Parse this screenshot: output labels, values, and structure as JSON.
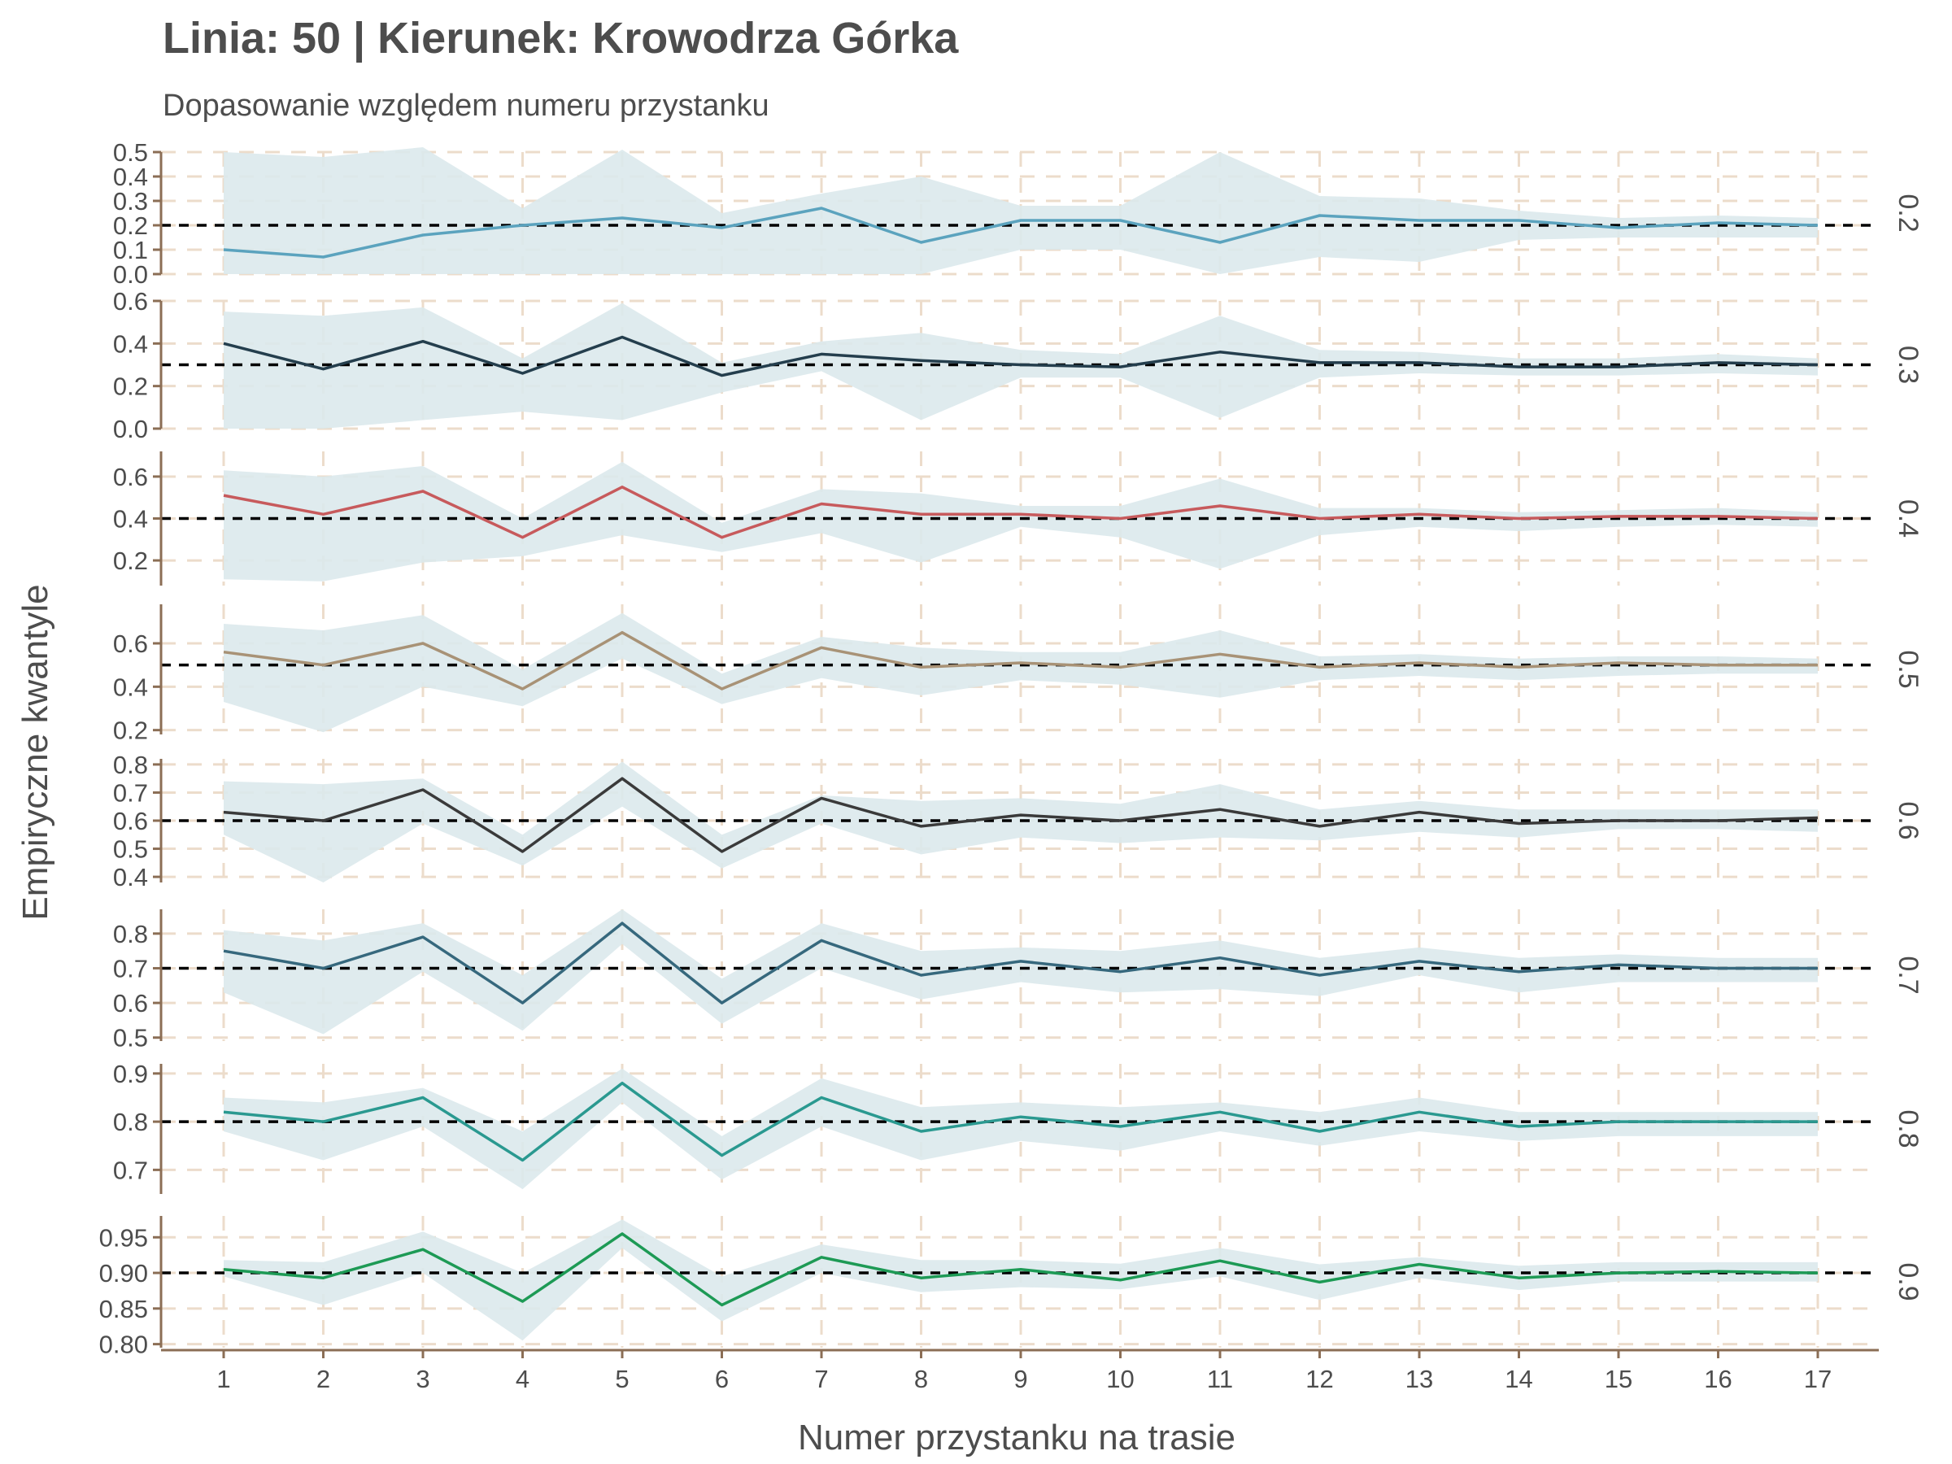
{
  "chart_data": {
    "type": "line",
    "title": "Linia: 50 | Kierunek: Krowodrza Górka",
    "subtitle": "Dopasowanie względem numeru przystanku",
    "xlabel": "Numer przystanku na trasie",
    "ylabel": "Empiryczne kwantyle",
    "x": [
      1,
      2,
      3,
      4,
      5,
      6,
      7,
      8,
      9,
      10,
      11,
      12,
      13,
      14,
      15,
      16,
      17
    ],
    "grid": true,
    "colors": {
      "band": "#dbe9ec",
      "grid": "#ecdccb",
      "axis": "#8b6e55",
      "reference_line": "#000000"
    },
    "panels": [
      {
        "strip_label": "0.2",
        "reference": 0.2,
        "ylim": [
          0.0,
          0.5
        ],
        "yticks": [
          0.0,
          0.1,
          0.2,
          0.3,
          0.4,
          0.5
        ],
        "ytick_labels": [
          "0.0",
          "0.1",
          "0.2",
          "0.3",
          "0.4",
          "0.5"
        ],
        "color": "#5ba3be",
        "values": [
          0.1,
          0.07,
          0.16,
          0.2,
          0.23,
          0.19,
          0.27,
          0.13,
          0.22,
          0.22,
          0.13,
          0.24,
          0.22,
          0.22,
          0.19,
          0.21,
          0.2
        ],
        "lower": [
          0.0,
          0.0,
          0.0,
          0.0,
          0.0,
          0.0,
          0.0,
          0.0,
          0.1,
          0.1,
          0.0,
          0.07,
          0.05,
          0.14,
          0.15,
          0.15,
          0.15
        ],
        "upper": [
          0.5,
          0.48,
          0.52,
          0.27,
          0.51,
          0.25,
          0.33,
          0.4,
          0.28,
          0.28,
          0.5,
          0.32,
          0.31,
          0.26,
          0.23,
          0.24,
          0.23
        ]
      },
      {
        "strip_label": "0.3",
        "reference": 0.3,
        "ylim": [
          0.0,
          0.6
        ],
        "yticks": [
          0.0,
          0.2,
          0.4,
          0.6
        ],
        "ytick_labels": [
          "0.0",
          "0.2",
          "0.4",
          "0.6"
        ],
        "color": "#243e4d",
        "values": [
          0.4,
          0.28,
          0.41,
          0.26,
          0.43,
          0.25,
          0.35,
          0.32,
          0.3,
          0.29,
          0.36,
          0.31,
          0.31,
          0.29,
          0.29,
          0.31,
          0.3
        ],
        "lower": [
          0.0,
          0.0,
          0.04,
          0.08,
          0.04,
          0.17,
          0.27,
          0.04,
          0.24,
          0.24,
          0.05,
          0.24,
          0.26,
          0.25,
          0.25,
          0.26,
          0.25
        ],
        "upper": [
          0.55,
          0.53,
          0.57,
          0.33,
          0.59,
          0.31,
          0.41,
          0.45,
          0.37,
          0.35,
          0.53,
          0.37,
          0.36,
          0.33,
          0.33,
          0.35,
          0.33
        ]
      },
      {
        "strip_label": "0.4",
        "reference": 0.4,
        "ylim": [
          0.08,
          0.72
        ],
        "yticks": [
          0.2,
          0.4,
          0.6
        ],
        "ytick_labels": [
          "0.2",
          "0.4",
          "0.6"
        ],
        "color": "#c75a5c",
        "values": [
          0.51,
          0.42,
          0.53,
          0.31,
          0.55,
          0.31,
          0.47,
          0.42,
          0.42,
          0.4,
          0.46,
          0.4,
          0.42,
          0.4,
          0.41,
          0.41,
          0.4
        ],
        "lower": [
          0.11,
          0.1,
          0.19,
          0.22,
          0.32,
          0.24,
          0.33,
          0.19,
          0.36,
          0.31,
          0.16,
          0.32,
          0.36,
          0.34,
          0.36,
          0.37,
          0.36
        ],
        "upper": [
          0.63,
          0.6,
          0.65,
          0.4,
          0.67,
          0.38,
          0.54,
          0.52,
          0.46,
          0.46,
          0.59,
          0.45,
          0.45,
          0.43,
          0.44,
          0.45,
          0.43
        ]
      },
      {
        "strip_label": "0.5",
        "reference": 0.5,
        "ylim": [
          0.18,
          0.78
        ],
        "yticks": [
          0.2,
          0.4,
          0.6
        ],
        "ytick_labels": [
          "0.2",
          "0.4",
          "0.6"
        ],
        "color": "#a89276",
        "values": [
          0.56,
          0.5,
          0.6,
          0.39,
          0.65,
          0.39,
          0.58,
          0.49,
          0.51,
          0.49,
          0.55,
          0.49,
          0.51,
          0.49,
          0.51,
          0.5,
          0.5
        ],
        "lower": [
          0.33,
          0.19,
          0.4,
          0.31,
          0.53,
          0.32,
          0.44,
          0.36,
          0.43,
          0.41,
          0.35,
          0.43,
          0.45,
          0.43,
          0.45,
          0.46,
          0.46
        ],
        "upper": [
          0.69,
          0.66,
          0.73,
          0.48,
          0.74,
          0.46,
          0.63,
          0.58,
          0.56,
          0.56,
          0.66,
          0.54,
          0.55,
          0.53,
          0.54,
          0.54,
          0.53
        ]
      },
      {
        "strip_label": "0.6",
        "reference": 0.6,
        "ylim": [
          0.38,
          0.82
        ],
        "yticks": [
          0.4,
          0.5,
          0.6,
          0.7,
          0.8
        ],
        "ytick_labels": [
          "0.4",
          "0.5",
          "0.6",
          "0.7",
          "0.8"
        ],
        "color": "#3a3a3a",
        "values": [
          0.63,
          0.6,
          0.71,
          0.49,
          0.75,
          0.49,
          0.68,
          0.58,
          0.62,
          0.6,
          0.64,
          0.58,
          0.63,
          0.59,
          0.6,
          0.6,
          0.61
        ],
        "lower": [
          0.55,
          0.38,
          0.59,
          0.44,
          0.65,
          0.43,
          0.59,
          0.48,
          0.54,
          0.52,
          0.54,
          0.53,
          0.56,
          0.54,
          0.57,
          0.57,
          0.56
        ],
        "upper": [
          0.74,
          0.73,
          0.75,
          0.55,
          0.81,
          0.55,
          0.69,
          0.67,
          0.68,
          0.66,
          0.73,
          0.64,
          0.67,
          0.64,
          0.64,
          0.64,
          0.64
        ]
      },
      {
        "strip_label": "0.7",
        "reference": 0.7,
        "ylim": [
          0.49,
          0.87
        ],
        "yticks": [
          0.5,
          0.6,
          0.7,
          0.8
        ],
        "ytick_labels": [
          "0.5",
          "0.6",
          "0.7",
          "0.8"
        ],
        "color": "#36687d",
        "values": [
          0.75,
          0.7,
          0.79,
          0.6,
          0.83,
          0.6,
          0.78,
          0.68,
          0.72,
          0.69,
          0.73,
          0.68,
          0.72,
          0.69,
          0.71,
          0.7,
          0.7
        ],
        "lower": [
          0.63,
          0.51,
          0.69,
          0.52,
          0.77,
          0.54,
          0.7,
          0.61,
          0.66,
          0.63,
          0.64,
          0.62,
          0.68,
          0.63,
          0.66,
          0.66,
          0.66
        ],
        "upper": [
          0.81,
          0.78,
          0.83,
          0.68,
          0.87,
          0.67,
          0.83,
          0.75,
          0.76,
          0.75,
          0.78,
          0.73,
          0.76,
          0.73,
          0.74,
          0.73,
          0.73
        ]
      },
      {
        "strip_label": "0.8",
        "reference": 0.8,
        "ylim": [
          0.65,
          0.92
        ],
        "yticks": [
          0.7,
          0.8,
          0.9
        ],
        "ytick_labels": [
          "0.7",
          "0.8",
          "0.9"
        ],
        "color": "#2a9990",
        "values": [
          0.82,
          0.8,
          0.85,
          0.72,
          0.88,
          0.73,
          0.85,
          0.78,
          0.81,
          0.79,
          0.82,
          0.78,
          0.82,
          0.79,
          0.8,
          0.8,
          0.8
        ],
        "lower": [
          0.78,
          0.72,
          0.79,
          0.66,
          0.84,
          0.68,
          0.79,
          0.72,
          0.76,
          0.74,
          0.78,
          0.75,
          0.78,
          0.76,
          0.77,
          0.77,
          0.77
        ],
        "upper": [
          0.85,
          0.84,
          0.87,
          0.78,
          0.91,
          0.77,
          0.89,
          0.83,
          0.84,
          0.83,
          0.84,
          0.82,
          0.85,
          0.82,
          0.82,
          0.82,
          0.82
        ]
      },
      {
        "strip_label": "0.9",
        "reference": 0.9,
        "ylim": [
          0.795,
          0.98
        ],
        "yticks": [
          0.8,
          0.85,
          0.9,
          0.95
        ],
        "ytick_labels": [
          "0.80",
          "0.85",
          "0.90",
          "0.95"
        ],
        "color": "#1d9a55",
        "values": [
          0.905,
          0.893,
          0.933,
          0.86,
          0.955,
          0.855,
          0.922,
          0.893,
          0.905,
          0.89,
          0.917,
          0.887,
          0.912,
          0.893,
          0.9,
          0.902,
          0.9
        ],
        "lower": [
          0.895,
          0.855,
          0.9,
          0.805,
          0.935,
          0.832,
          0.9,
          0.873,
          0.88,
          0.877,
          0.895,
          0.862,
          0.893,
          0.876,
          0.888,
          0.888,
          0.888
        ],
        "upper": [
          0.918,
          0.915,
          0.958,
          0.9,
          0.975,
          0.895,
          0.94,
          0.918,
          0.918,
          0.913,
          0.935,
          0.912,
          0.922,
          0.91,
          0.915,
          0.915,
          0.915
        ]
      }
    ]
  }
}
